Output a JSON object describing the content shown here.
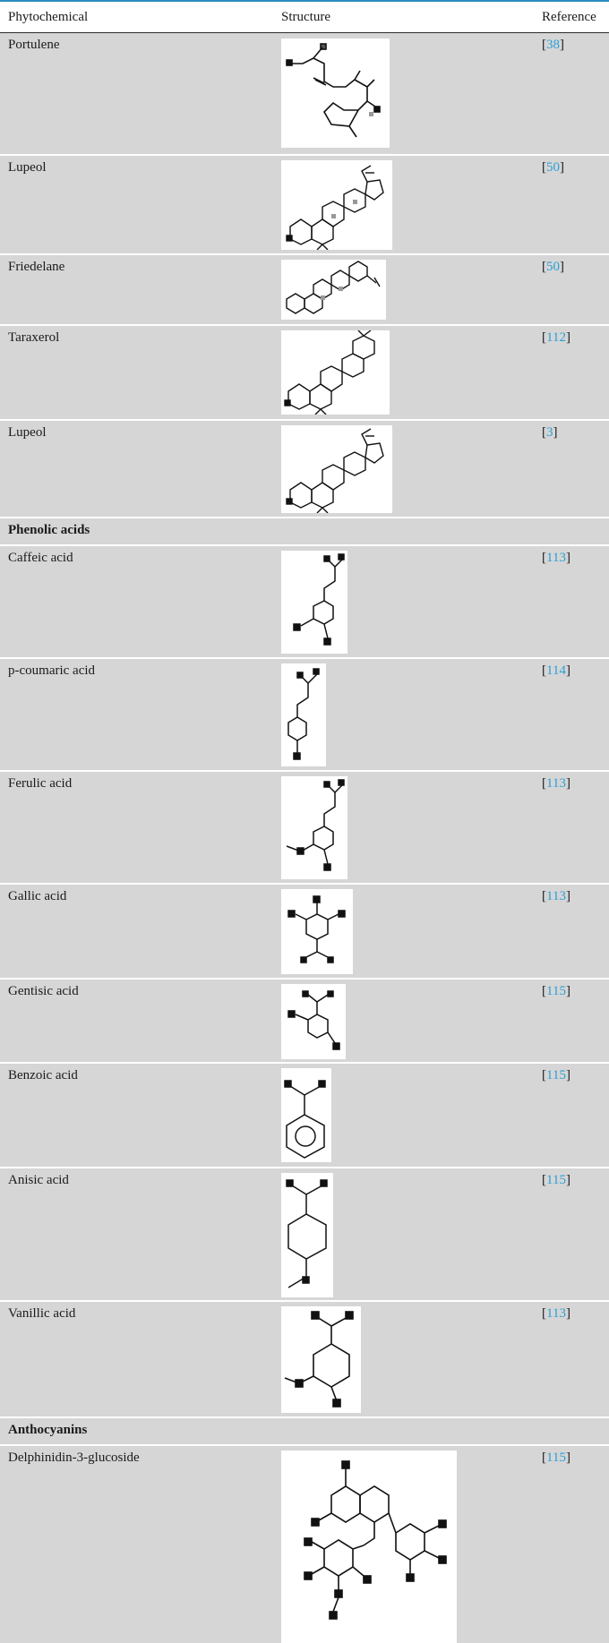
{
  "header": {
    "col_phytochemical": "Phytochemical",
    "col_structure": "Structure",
    "col_reference": "Reference"
  },
  "rows": [
    {
      "type": "compound",
      "name": "Portulene",
      "ref": "38",
      "structure_icon": "portulene-structure"
    },
    {
      "type": "compound",
      "name": "Lupeol",
      "ref": "50",
      "structure_icon": "lupeol-structure"
    },
    {
      "type": "compound",
      "name": "Friedelane",
      "ref": "50",
      "structure_icon": "friedelane-structure"
    },
    {
      "type": "compound",
      "name": "Taraxerol",
      "ref": "112",
      "structure_icon": "taraxerol-structure"
    },
    {
      "type": "compound",
      "name": "Lupeol",
      "ref": "3",
      "structure_icon": "lupeol-structure"
    },
    {
      "type": "section",
      "name": "Phenolic acids"
    },
    {
      "type": "compound",
      "name": "Caffeic acid",
      "ref": "113",
      "structure_icon": "caffeic-acid-structure"
    },
    {
      "type": "compound",
      "name": "p-coumaric acid",
      "ref": "114",
      "structure_icon": "p-coumaric-acid-structure"
    },
    {
      "type": "compound",
      "name": "Ferulic acid",
      "ref": "113",
      "structure_icon": "ferulic-acid-structure"
    },
    {
      "type": "compound",
      "name": "Gallic acid",
      "ref": "113",
      "structure_icon": "gallic-acid-structure"
    },
    {
      "type": "compound",
      "name": "Gentisic acid",
      "ref": "115",
      "structure_icon": "gentisic-acid-structure"
    },
    {
      "type": "compound",
      "name": "Benzoic acid",
      "ref": "115",
      "structure_icon": "benzoic-acid-structure"
    },
    {
      "type": "compound",
      "name": "Anisic acid",
      "ref": "115",
      "structure_icon": "anisic-acid-structure"
    },
    {
      "type": "compound",
      "name": "Vanillic acid",
      "ref": "113",
      "structure_icon": "vanillic-acid-structure"
    },
    {
      "type": "section",
      "name": "Anthocyanins"
    },
    {
      "type": "compound",
      "name": "Delphinidin-3-glucoside",
      "ref": "115",
      "structure_icon": "delphinidin-3-glucoside-structure"
    }
  ],
  "colors": {
    "row_background": "#d6d6d6",
    "reference_link": "#2a9fd6",
    "top_rule": "#2b8cc4"
  }
}
